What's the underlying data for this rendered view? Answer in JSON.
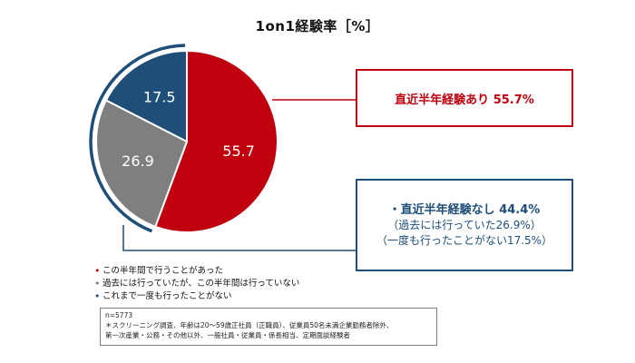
{
  "chart_data": {
    "type": "pie",
    "title": "1on1経験率［%］",
    "slices": [
      {
        "label": "この半年間で行うことがあった",
        "value": 55.7,
        "value_label": "55.7",
        "color": "#c0000e"
      },
      {
        "label": "過去には行っていたが、この半年間は行っていない",
        "value": 26.9,
        "value_label": "26.9",
        "color": "#7f7f7f"
      },
      {
        "label": "これまで一度も行ったことがない",
        "value": 17.5,
        "value_label": "17.5",
        "color": "#1f4e79"
      }
    ],
    "start_angle_deg": 0,
    "direction": "clockwise"
  },
  "callouts": {
    "recent": {
      "text": "直近半年経験あり 55.7%",
      "color": "#c0000e"
    },
    "none": {
      "main": "・直近半年経験なし 44.4%",
      "sub1": "（過去には行っていた26.9%）",
      "sub2": "（一度も行ったことがない17.5%）",
      "color": "#1f4e79"
    }
  },
  "legend": [
    {
      "text": "この半年間で行うことがあった",
      "color": "#c0000e"
    },
    {
      "text": "過去には行っていたが、この半年間は行っていない",
      "color": "#7f7f7f"
    },
    {
      "text": "これまで一度も行ったことがない",
      "color": "#1f4e79"
    }
  ],
  "notes": {
    "n": "n=5773",
    "line1": "＊スクリーニング調査、年齢は20～59歳正社員（正職員）、従業員50名未満企業勤務者除外、",
    "line2": "第一次産業・公務・その他以外、一般社員・従業員・係長相当、定期面談経験者"
  }
}
